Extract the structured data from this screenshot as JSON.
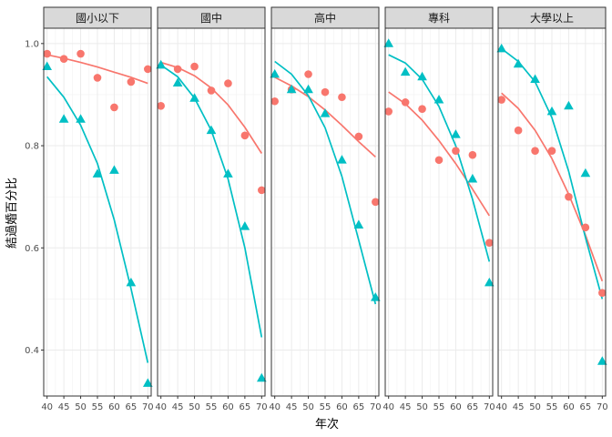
{
  "chart_data": {
    "type": "scatter",
    "xlabel": "年次",
    "ylabel": "結過婚百分比",
    "x": [
      40,
      45,
      50,
      55,
      60,
      65,
      70
    ],
    "xticks": [
      "40",
      "45",
      "50",
      "55",
      "60",
      "65",
      "70"
    ],
    "yticks": [
      "0.4",
      "0.6",
      "0.8",
      "1.0"
    ],
    "ytick_values": [
      0.4,
      0.6,
      0.8,
      1.0
    ],
    "xlim": [
      39,
      71
    ],
    "ylim": [
      0.31,
      1.03
    ],
    "grid": true,
    "legend": "none",
    "colors": {
      "group1": "#F8766D",
      "group2": "#00BFC4",
      "strip_fill": "#D9D9D9",
      "panel_border": "#333333"
    },
    "panels": [
      {
        "label": "國小以下",
        "series": [
          {
            "marker": "circle",
            "color": "#F8766D",
            "points": [
              [
                40,
                0.98
              ],
              [
                45,
                0.97
              ],
              [
                50,
                0.98
              ],
              [
                55,
                0.933
              ],
              [
                60,
                0.875
              ],
              [
                65,
                0.925
              ],
              [
                70,
                0.95
              ]
            ],
            "curve": [
              [
                40,
                0.978
              ],
              [
                45,
                0.971
              ],
              [
                50,
                0.963
              ],
              [
                55,
                0.954
              ],
              [
                60,
                0.944
              ],
              [
                65,
                0.934
              ],
              [
                70,
                0.922
              ]
            ]
          },
          {
            "marker": "triangle",
            "color": "#00BFC4",
            "points": [
              [
                40,
                0.955
              ],
              [
                45,
                0.852
              ],
              [
                50,
                0.852
              ],
              [
                55,
                0.745
              ],
              [
                60,
                0.752
              ],
              [
                65,
                0.532
              ],
              [
                70,
                0.335
              ]
            ],
            "curve": [
              [
                40,
                0.935
              ],
              [
                45,
                0.895
              ],
              [
                50,
                0.84
              ],
              [
                55,
                0.765
              ],
              [
                60,
                0.655
              ],
              [
                65,
                0.52
              ],
              [
                70,
                0.375
              ]
            ]
          }
        ]
      },
      {
        "label": "國中",
        "series": [
          {
            "marker": "circle",
            "color": "#F8766D",
            "points": [
              [
                40,
                0.878
              ],
              [
                45,
                0.95
              ],
              [
                50,
                0.955
              ],
              [
                55,
                0.908
              ],
              [
                60,
                0.922
              ],
              [
                65,
                0.82
              ],
              [
                70,
                0.713
              ]
            ],
            "curve": [
              [
                40,
                0.963
              ],
              [
                45,
                0.953
              ],
              [
                50,
                0.937
              ],
              [
                55,
                0.913
              ],
              [
                60,
                0.88
              ],
              [
                65,
                0.836
              ],
              [
                70,
                0.785
              ]
            ]
          },
          {
            "marker": "triangle",
            "color": "#00BFC4",
            "points": [
              [
                40,
                0.958
              ],
              [
                45,
                0.923
              ],
              [
                50,
                0.893
              ],
              [
                55,
                0.83
              ],
              [
                60,
                0.745
              ],
              [
                65,
                0.642
              ],
              [
                70,
                0.345
              ]
            ],
            "curve": [
              [
                40,
                0.958
              ],
              [
                45,
                0.935
              ],
              [
                50,
                0.893
              ],
              [
                55,
                0.83
              ],
              [
                60,
                0.735
              ],
              [
                65,
                0.6
              ],
              [
                70,
                0.425
              ]
            ]
          }
        ]
      },
      {
        "label": "高中",
        "series": [
          {
            "marker": "circle",
            "color": "#F8766D",
            "points": [
              [
                40,
                0.887
              ],
              [
                45,
                0.91
              ],
              [
                50,
                0.94
              ],
              [
                55,
                0.905
              ],
              [
                60,
                0.895
              ],
              [
                65,
                0.818
              ],
              [
                70,
                0.69
              ]
            ],
            "curve": [
              [
                40,
                0.934
              ],
              [
                45,
                0.917
              ],
              [
                50,
                0.896
              ],
              [
                55,
                0.87
              ],
              [
                60,
                0.84
              ],
              [
                65,
                0.808
              ],
              [
                70,
                0.778
              ]
            ]
          },
          {
            "marker": "triangle",
            "color": "#00BFC4",
            "points": [
              [
                40,
                0.94
              ],
              [
                45,
                0.91
              ],
              [
                50,
                0.91
              ],
              [
                55,
                0.863
              ],
              [
                60,
                0.772
              ],
              [
                65,
                0.645
              ],
              [
                70,
                0.503
              ]
            ],
            "curve": [
              [
                40,
                0.965
              ],
              [
                45,
                0.94
              ],
              [
                50,
                0.898
              ],
              [
                55,
                0.835
              ],
              [
                60,
                0.74
              ],
              [
                65,
                0.615
              ],
              [
                70,
                0.49
              ]
            ]
          }
        ]
      },
      {
        "label": "專科",
        "series": [
          {
            "marker": "circle",
            "color": "#F8766D",
            "points": [
              [
                40,
                0.867
              ],
              [
                45,
                0.885
              ],
              [
                50,
                0.872
              ],
              [
                55,
                0.772
              ],
              [
                60,
                0.79
              ],
              [
                65,
                0.782
              ],
              [
                70,
                0.61
              ]
            ],
            "curve": [
              [
                40,
                0.905
              ],
              [
                45,
                0.882
              ],
              [
                50,
                0.85
              ],
              [
                55,
                0.81
              ],
              [
                60,
                0.765
              ],
              [
                65,
                0.715
              ],
              [
                70,
                0.663
              ]
            ]
          },
          {
            "marker": "triangle",
            "color": "#00BFC4",
            "points": [
              [
                40,
                1.0
              ],
              [
                45,
                0.944
              ],
              [
                50,
                0.935
              ],
              [
                55,
                0.89
              ],
              [
                60,
                0.822
              ],
              [
                65,
                0.735
              ],
              [
                70,
                0.532
              ]
            ],
            "curve": [
              [
                40,
                0.978
              ],
              [
                45,
                0.962
              ],
              [
                50,
                0.93
              ],
              [
                55,
                0.877
              ],
              [
                60,
                0.8
              ],
              [
                65,
                0.695
              ],
              [
                70,
                0.573
              ]
            ]
          }
        ]
      },
      {
        "label": "大學以上",
        "series": [
          {
            "marker": "circle",
            "color": "#F8766D",
            "points": [
              [
                40,
                0.89
              ],
              [
                45,
                0.83
              ],
              [
                50,
                0.79
              ],
              [
                55,
                0.79
              ],
              [
                60,
                0.7
              ],
              [
                65,
                0.64
              ],
              [
                70,
                0.512
              ]
            ],
            "curve": [
              [
                40,
                0.903
              ],
              [
                45,
                0.873
              ],
              [
                50,
                0.83
              ],
              [
                55,
                0.775
              ],
              [
                60,
                0.705
              ],
              [
                65,
                0.625
              ],
              [
                70,
                0.535
              ]
            ]
          },
          {
            "marker": "triangle",
            "color": "#00BFC4",
            "points": [
              [
                40,
                0.99
              ],
              [
                45,
                0.96
              ],
              [
                50,
                0.93
              ],
              [
                55,
                0.867
              ],
              [
                60,
                0.878
              ],
              [
                65,
                0.746
              ],
              [
                70,
                0.378
              ]
            ],
            "curve": [
              [
                40,
                0.99
              ],
              [
                45,
                0.965
              ],
              [
                50,
                0.925
              ],
              [
                55,
                0.855
              ],
              [
                60,
                0.75
              ],
              [
                65,
                0.62
              ],
              [
                70,
                0.5
              ]
            ]
          }
        ]
      }
    ]
  }
}
